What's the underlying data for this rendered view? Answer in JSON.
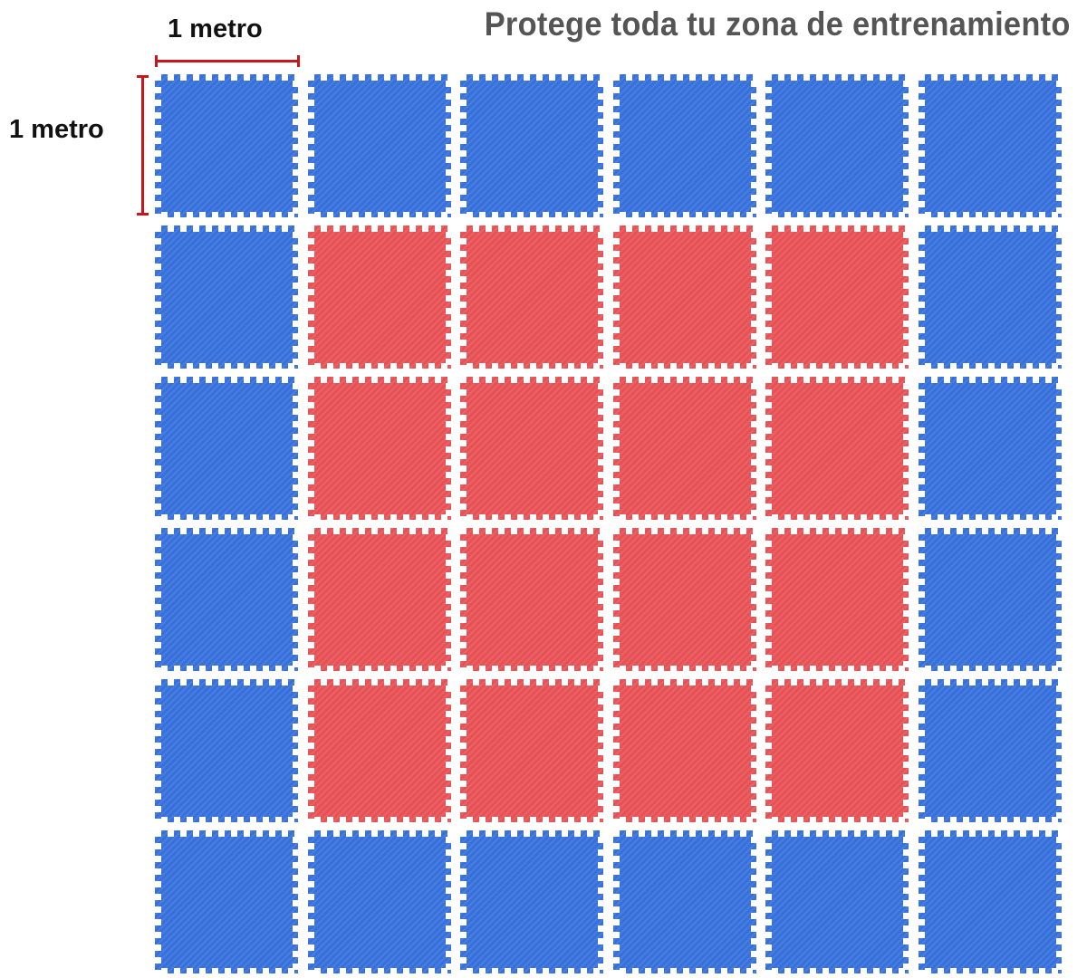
{
  "title": "Protege toda tu zona de entrenamiento",
  "dimensions": {
    "width_label": "1 metro",
    "height_label": "1 metro",
    "marker_color": "#c8161d"
  },
  "colors": {
    "blue": "#3a74e0",
    "red": "#ec5558",
    "title": "#555555"
  },
  "grid": {
    "rows": 6,
    "columns": 6,
    "layout": [
      [
        "blue",
        "blue",
        "blue",
        "blue",
        "blue",
        "blue"
      ],
      [
        "blue",
        "red",
        "red",
        "red",
        "red",
        "blue"
      ],
      [
        "blue",
        "red",
        "red",
        "red",
        "red",
        "blue"
      ],
      [
        "blue",
        "red",
        "red",
        "red",
        "red",
        "blue"
      ],
      [
        "blue",
        "red",
        "red",
        "red",
        "red",
        "blue"
      ],
      [
        "blue",
        "blue",
        "blue",
        "blue",
        "blue",
        "blue"
      ]
    ]
  }
}
